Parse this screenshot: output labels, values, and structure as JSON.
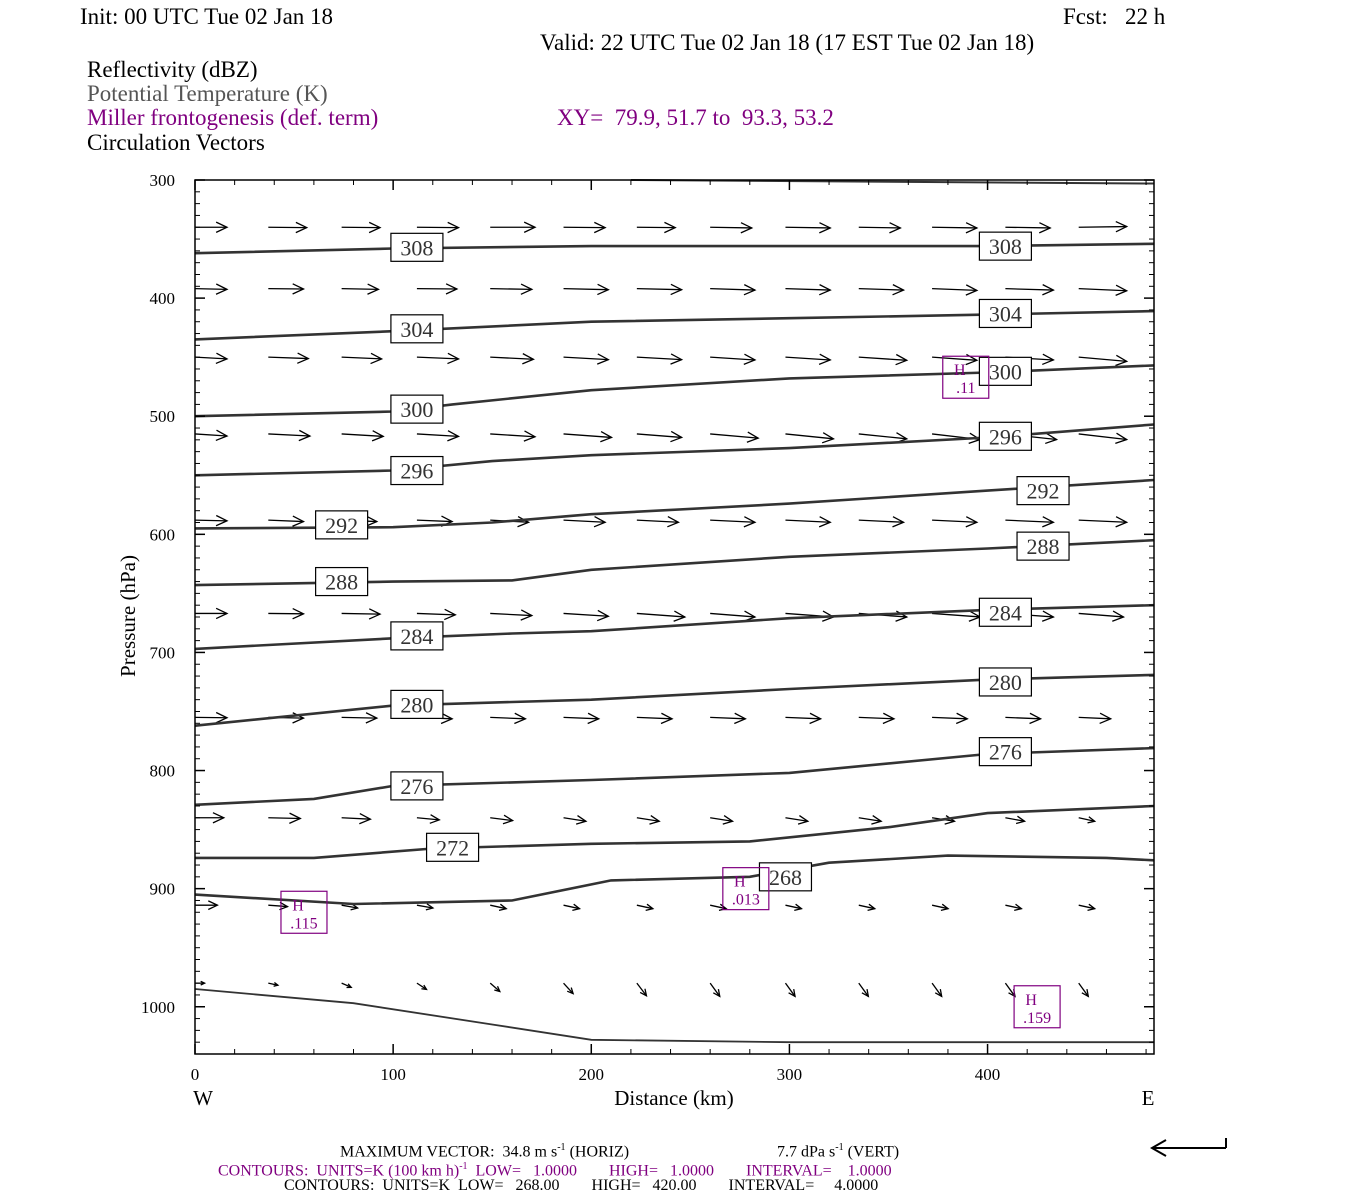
{
  "header": {
    "init": "Init: 00 UTC Tue 02 Jan 18",
    "fcst": "Fcst:   22 h",
    "valid": "Valid: 22 UTC Tue 02 Jan 18 (17 EST Tue 02 Jan 18)",
    "fields": [
      "Reflectivity (dBZ)",
      "Potential Temperature (K)",
      "Miller frontogenesis (def. term)",
      "Circulation Vectors"
    ],
    "xy": "XY=  79.9, 51.7 to  93.3, 53.2"
  },
  "footer": {
    "max_vector": "MAXIMUM VECTOR:  34.8 m s",
    "max_vector_exp": "-1",
    "max_vector_horiz": " (HORIZ)",
    "max_vector_vert": "7.7 dPa s",
    "max_vector_vert_exp": "-1",
    "max_vector_vert_tail": " (VERT)",
    "contours1_a": "CONTOURS:  UNITS=K (100 km h)",
    "contours1_exp": "-1",
    "contours1_b": "  LOW=   1.0000        HIGH=   1.0000        INTERVAL=    1.0000",
    "contours2": "CONTOURS:  UNITS=K  LOW=   268.00        HIGH=   420.00        INTERVAL=     4.0000"
  },
  "colors": {
    "theta": "#333333",
    "frontogenesis": "#800080",
    "vectors": "#000000"
  },
  "chart_data": {
    "type": "line",
    "xlabel": "Distance (km)",
    "ylabel": "Pressure (hPa)",
    "xlim": [
      0,
      484
    ],
    "ylim": [
      1040,
      300
    ],
    "x_ticks": [
      0,
      100,
      200,
      300,
      400
    ],
    "y_ticks": [
      300,
      400,
      500,
      600,
      700,
      800,
      900,
      1000
    ],
    "west_label": "W",
    "east_label": "E",
    "theta_contours": [
      {
        "label": "308",
        "x": [
          0,
          100,
          200,
          300,
          400,
          484
        ],
        "p": [
          362,
          358,
          356,
          356,
          356,
          354
        ],
        "label_at": [
          [
            112,
            357
          ],
          [
            409,
            356
          ]
        ]
      },
      {
        "label": "304",
        "x": [
          0,
          100,
          200,
          300,
          400,
          484
        ],
        "p": [
          435,
          428,
          420,
          417,
          414,
          411
        ],
        "label_at": [
          [
            112,
            426
          ],
          [
            409,
            413
          ]
        ]
      },
      {
        "label": "300",
        "x": [
          0,
          100,
          130,
          200,
          300,
          400,
          484
        ],
        "p": [
          500,
          496,
          490,
          478,
          468,
          463,
          457
        ],
        "label_at": [
          [
            112,
            494
          ],
          [
            409,
            462
          ]
        ]
      },
      {
        "label": "296",
        "x": [
          0,
          100,
          150,
          200,
          300,
          400,
          484
        ],
        "p": [
          550,
          546,
          538,
          533,
          527,
          518,
          507
        ],
        "label_at": [
          [
            112,
            546
          ],
          [
            409,
            517
          ]
        ]
      },
      {
        "label": "292",
        "x": [
          0,
          100,
          150,
          200,
          300,
          400,
          484
        ],
        "p": [
          595,
          594,
          590,
          583,
          574,
          563,
          554
        ],
        "label_at": [
          [
            74,
            592
          ],
          [
            428,
            563
          ]
        ]
      },
      {
        "label": "288",
        "x": [
          0,
          100,
          160,
          200,
          300,
          400,
          484
        ],
        "p": [
          643,
          640,
          639,
          630,
          619,
          612,
          605
        ],
        "label_at": [
          [
            74,
            640
          ],
          [
            428,
            610
          ]
        ]
      },
      {
        "label": "284",
        "x": [
          0,
          100,
          160,
          200,
          300,
          400,
          484
        ],
        "p": [
          697,
          688,
          684,
          682,
          671,
          664,
          660
        ],
        "label_at": [
          [
            112,
            686
          ],
          [
            409,
            666
          ]
        ]
      },
      {
        "label": "280",
        "x": [
          0,
          100,
          160,
          200,
          300,
          400,
          484
        ],
        "p": [
          762,
          745,
          742,
          740,
          731,
          723,
          719
        ],
        "label_at": [
          [
            112,
            744
          ],
          [
            409,
            725
          ]
        ]
      },
      {
        "label": "276",
        "x": [
          0,
          60,
          100,
          160,
          200,
          300,
          400,
          484
        ],
        "p": [
          829,
          824,
          813,
          810,
          808,
          802,
          786,
          781
        ],
        "label_at": [
          [
            112,
            813
          ],
          [
            409,
            784
          ]
        ]
      },
      {
        "label": "272",
        "x": [
          0,
          60,
          120,
          200,
          280,
          350,
          400,
          484
        ],
        "p": [
          874,
          874,
          866,
          862,
          860,
          848,
          836,
          830
        ],
        "label_at": [
          [
            130,
            865
          ]
        ]
      },
      {
        "label": "268",
        "x": [
          0,
          80,
          160,
          210,
          280,
          320,
          380,
          460,
          484
        ],
        "p": [
          905,
          913,
          910,
          893,
          890,
          878,
          872,
          874,
          876
        ],
        "label_at": [
          [
            298,
            890
          ]
        ]
      },
      {
        "label": "",
        "x": [
          0,
          80,
          150,
          200,
          300,
          400,
          484
        ],
        "p": [
          985,
          997,
          1015,
          1028,
          1030,
          1030,
          1030
        ],
        "label_at": []
      }
    ],
    "frontogenesis_maxima": [
      {
        "symbol": "H",
        "value": ".115",
        "x": 55,
        "p": 920
      },
      {
        "symbol": "H",
        "value": ".013",
        "x": 278,
        "p": 900
      },
      {
        "symbol": "H",
        "value": ".11",
        "x": 389,
        "p": 467
      },
      {
        "symbol": "H",
        "value": ".159",
        "x": 425,
        "p": 1000
      }
    ],
    "vector_rows": [
      {
        "p": 340,
        "x": [
          0,
          37,
          74,
          112,
          149,
          186,
          223,
          260,
          298,
          335,
          372,
          409,
          446
        ],
        "dx": [
          20,
          24,
          24,
          26,
          28,
          26,
          24,
          26,
          28,
          26,
          28,
          28,
          30
        ],
        "dp": [
          0,
          1,
          1,
          1,
          0,
          1,
          1,
          2,
          2,
          2,
          2,
          2,
          -2
        ]
      },
      {
        "p": 392,
        "x": [
          0,
          37,
          74,
          112,
          149,
          186,
          223,
          260,
          298,
          335,
          372,
          409,
          446
        ],
        "dx": [
          20,
          22,
          23,
          25,
          26,
          28,
          28,
          28,
          28,
          28,
          28,
          30,
          30
        ],
        "dp": [
          2,
          1,
          2,
          1,
          2,
          3,
          3,
          4,
          4,
          4,
          5,
          4,
          6
        ]
      },
      {
        "p": 450,
        "x": [
          0,
          37,
          74,
          112,
          149,
          186,
          223,
          260,
          298,
          335,
          372,
          409,
          446
        ],
        "dx": [
          20,
          25,
          25,
          26,
          27,
          28,
          28,
          28,
          28,
          30,
          28,
          30,
          30
        ],
        "dp": [
          5,
          4,
          5,
          5,
          6,
          7,
          7,
          8,
          8,
          9,
          9,
          8,
          12
        ]
      },
      {
        "p": 515,
        "x": [
          0,
          37,
          74,
          112,
          149,
          186,
          223,
          260,
          298,
          335,
          372,
          409,
          446
        ],
        "dx": [
          20,
          26,
          26,
          26,
          28,
          30,
          28,
          30,
          30,
          30,
          30,
          32,
          30
        ],
        "dp": [
          6,
          6,
          7,
          7,
          8,
          10,
          10,
          12,
          14,
          14,
          16,
          16,
          16
        ]
      },
      {
        "p": 588,
        "x": [
          0,
          37,
          74,
          112,
          149,
          186,
          223,
          260,
          298,
          335,
          372,
          409,
          446
        ],
        "dx": [
          20,
          22,
          22,
          22,
          24,
          26,
          26,
          28,
          28,
          28,
          28,
          30,
          30
        ],
        "dp": [
          2,
          4,
          4,
          4,
          6,
          6,
          6,
          6,
          6,
          6,
          6,
          6,
          6
        ]
      },
      {
        "p": 667,
        "x": [
          0,
          37,
          74,
          112,
          149,
          186,
          223,
          260,
          298,
          335,
          372,
          409,
          446
        ],
        "dx": [
          20,
          22,
          24,
          24,
          26,
          28,
          30,
          28,
          30,
          30,
          30,
          30,
          28
        ],
        "dp": [
          0,
          1,
          2,
          4,
          6,
          8,
          10,
          10,
          10,
          10,
          10,
          10,
          10
        ]
      },
      {
        "p": 755,
        "x": [
          0,
          37,
          74,
          112,
          149,
          186,
          223,
          260,
          298,
          335,
          372,
          409,
          446
        ],
        "dx": [
          20,
          22,
          22,
          22,
          22,
          22,
          22,
          22,
          22,
          22,
          22,
          22,
          20
        ],
        "dp": [
          1,
          2,
          2,
          4,
          4,
          4,
          4,
          4,
          4,
          4,
          4,
          4,
          4
        ]
      },
      {
        "p": 840,
        "x": [
          0,
          37,
          74,
          112,
          149,
          186,
          223,
          260,
          298,
          335,
          372,
          409,
          446
        ],
        "dx": [
          18,
          20,
          18,
          14,
          14,
          14,
          14,
          14,
          14,
          14,
          14,
          12,
          10
        ],
        "dp": [
          0,
          2,
          4,
          6,
          8,
          10,
          10,
          10,
          10,
          10,
          10,
          10,
          10
        ]
      },
      {
        "p": 914,
        "x": [
          0,
          37,
          74,
          112,
          149,
          186,
          223,
          260,
          298,
          335,
          372,
          409,
          446
        ],
        "dx": [
          14,
          12,
          10,
          10,
          10,
          10,
          10,
          10,
          10,
          10,
          10,
          10,
          10
        ],
        "dp": [
          0,
          4,
          8,
          8,
          10,
          10,
          10,
          10,
          10,
          10,
          10,
          10,
          10
        ]
      },
      {
        "p": 980,
        "x": [
          0,
          37,
          74,
          112,
          149,
          186,
          223,
          260,
          298,
          335,
          372,
          409,
          446
        ],
        "dx": [
          6,
          6,
          6,
          6,
          6,
          6,
          6,
          6,
          6,
          6,
          6,
          6,
          6
        ],
        "dp": [
          0,
          6,
          12,
          18,
          24,
          30,
          36,
          38,
          38,
          38,
          38,
          38,
          38
        ]
      }
    ]
  }
}
